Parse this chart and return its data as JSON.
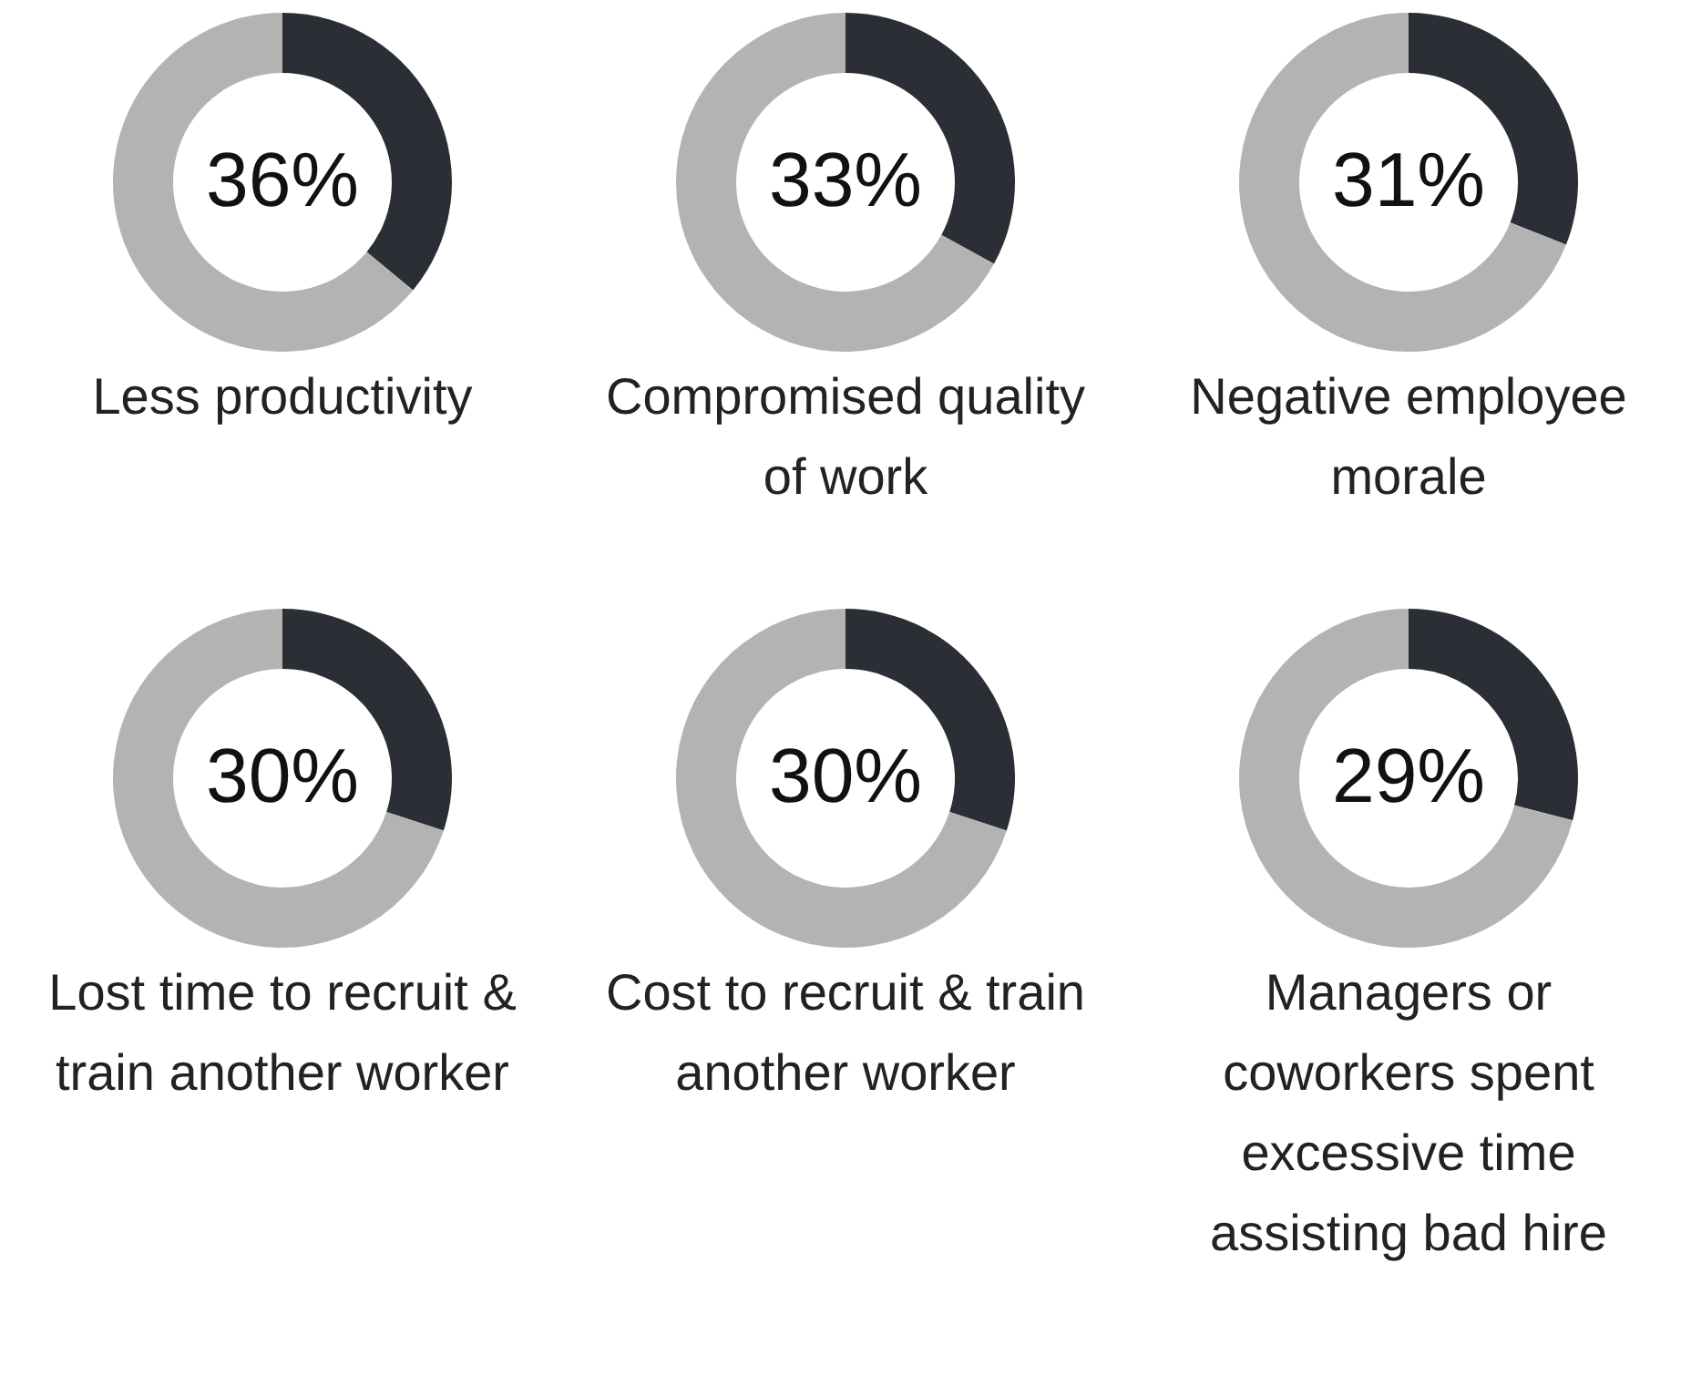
{
  "chart_data": [
    {
      "type": "donut",
      "title": "Less productivity",
      "categories": [
        null,
        null
      ],
      "values": [
        36,
        64
      ],
      "colors": [
        "#2b2e35",
        "#b3b3b3"
      ],
      "value_labels": [
        "36%",
        null
      ]
    },
    {
      "type": "donut",
      "title": "Compromised quality of work",
      "categories": [
        null,
        null
      ],
      "values": [
        33,
        67
      ],
      "colors": [
        "#2b2e35",
        "#b3b3b3"
      ],
      "value_labels": [
        "33%",
        null
      ]
    },
    {
      "type": "donut",
      "title": "Negative employee morale",
      "categories": [
        null,
        null
      ],
      "values": [
        31,
        69
      ],
      "colors": [
        "#2b2e35",
        "#b3b3b3"
      ],
      "value_labels": [
        "31%",
        null
      ]
    },
    {
      "type": "donut",
      "title": "Lost time to recruit & train another worker",
      "categories": [
        null,
        null
      ],
      "values": [
        30,
        70
      ],
      "colors": [
        "#2b2e35",
        "#b3b3b3"
      ],
      "value_labels": [
        "30%",
        null
      ]
    },
    {
      "type": "donut",
      "title": "Cost to recruit & train another worker",
      "categories": [
        null,
        null
      ],
      "values": [
        30,
        70
      ],
      "colors": [
        "#2b2e35",
        "#b3b3b3"
      ],
      "value_labels": [
        "30%",
        null
      ]
    },
    {
      "type": "donut",
      "title": "Managers or coworkers spent excessive time assisting bad hire",
      "categories": [
        null,
        null
      ],
      "values": [
        29,
        71
      ],
      "colors": [
        "#2b2e35",
        "#b3b3b3"
      ],
      "value_labels": [
        "29%",
        null
      ]
    }
  ]
}
